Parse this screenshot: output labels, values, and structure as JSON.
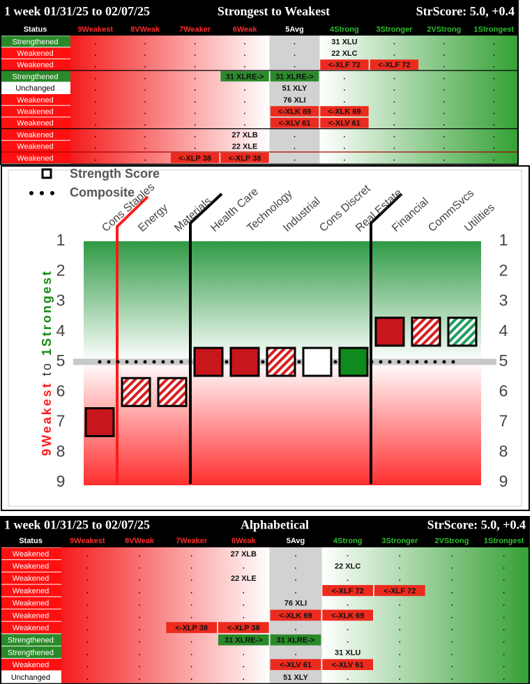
{
  "top_table": {
    "title_left": "1 week 01/31/25 to 02/07/25",
    "title_center": "Strongest to Weakest",
    "title_right": "StrScore: 5.0, +0.4",
    "headers": [
      "Status",
      "9Weakest",
      "8VWeak",
      "7Weaker",
      "6Weak",
      "5Avg",
      "4Strong",
      "3Stronger",
      "2VStrong",
      "1Strongest"
    ],
    "rows": [
      [
        "Strengthened",
        ".",
        ".",
        ".",
        ".",
        ".",
        "31 XLU",
        ".",
        ".",
        "."
      ],
      [
        "Weakened",
        ".",
        ".",
        ".",
        ".",
        ".",
        "22 XLC",
        ".",
        ".",
        "."
      ],
      [
        "Weakened",
        ".",
        ".",
        ".",
        ".",
        ".",
        "<-XLF 72",
        "<-XLF 72",
        ".",
        "."
      ],
      [
        "Strengthened",
        ".",
        ".",
        ".",
        "31 XLRE->",
        "31 XLRE->",
        ".",
        ".",
        ".",
        "."
      ],
      [
        "Unchanged",
        ".",
        ".",
        ".",
        ".",
        "51 XLY",
        ".",
        ".",
        ".",
        "."
      ],
      [
        "Weakened",
        ".",
        ".",
        ".",
        ".",
        "76 XLI",
        ".",
        ".",
        ".",
        "."
      ],
      [
        "Weakened",
        ".",
        ".",
        ".",
        ".",
        "<-XLK 69",
        "<-XLK 69",
        ".",
        ".",
        "."
      ],
      [
        "Weakened",
        ".",
        ".",
        ".",
        ".",
        "<-XLV 61",
        "<-XLV 61",
        ".",
        ".",
        "."
      ],
      [
        "Weakened",
        ".",
        ".",
        ".",
        "27 XLB",
        ".",
        ".",
        ".",
        ".",
        "."
      ],
      [
        "Weakened",
        ".",
        ".",
        ".",
        "22 XLE",
        ".",
        ".",
        ".",
        ".",
        "."
      ],
      [
        "Weakened",
        ".",
        ".",
        "<-XLP 38",
        "<-XLP 38",
        ".",
        ".",
        ".",
        ".",
        "."
      ]
    ]
  },
  "chart_data": {
    "type": "marker",
    "ylabel_weak": "9Weakest",
    "ylabel_to": "to",
    "ylabel_strong": "1Strongest",
    "categories": [
      "Cons Staples",
      "Energy",
      "Materials",
      "Health Care",
      "Technology",
      "Industrial",
      "Cons Discret",
      "Real Estate",
      "Financial",
      "CommSvcs",
      "Utilities"
    ],
    "series": [
      {
        "name": "Strength Score",
        "values": [
          7,
          6,
          6,
          5,
          5,
          5,
          5,
          5,
          4,
          4,
          4
        ],
        "colors": [
          "#c8161d",
          "#d81e1e",
          "#d81e1e",
          "#c8161d",
          "#c8161d",
          "#d81e1e",
          "#ffffff",
          "#0f8a1e",
          "#c8161d",
          "#d81e1e",
          "#1e9e5a"
        ],
        "hatched": [
          false,
          true,
          true,
          false,
          false,
          true,
          false,
          false,
          false,
          true,
          true
        ]
      },
      {
        "name": "Composite",
        "values": [
          5,
          5,
          5,
          5,
          5,
          5,
          5,
          5,
          5,
          5,
          5
        ],
        "color": "#000000"
      }
    ],
    "ylim": [
      9,
      1
    ],
    "yticks": [
      1,
      2,
      3,
      4,
      5,
      6,
      7,
      8,
      9
    ]
  },
  "bottom_table": {
    "title_left": "1 week 01/31/25 to 02/07/25",
    "title_center": "Alphabetical",
    "title_right": "StrScore: 5.0, +0.4",
    "headers": [
      "Status",
      "9Weakest",
      "8VWeak",
      "7Weaker",
      "6Weak",
      "5Avg",
      "4Strong",
      "3Stronger",
      "2VStrong",
      "1Strongest"
    ],
    "rows": [
      [
        "Weakened",
        ".",
        ".",
        ".",
        "27 XLB",
        ".",
        ".",
        ".",
        ".",
        "."
      ],
      [
        "Weakened",
        ".",
        ".",
        ".",
        ".",
        ".",
        "22 XLC",
        ".",
        ".",
        "."
      ],
      [
        "Weakened",
        ".",
        ".",
        ".",
        "22 XLE",
        ".",
        ".",
        ".",
        ".",
        "."
      ],
      [
        "Weakened",
        ".",
        ".",
        ".",
        ".",
        ".",
        "<-XLF 72",
        "<-XLF 72",
        ".",
        "."
      ],
      [
        "Weakened",
        ".",
        ".",
        ".",
        ".",
        "76 XLI",
        ".",
        ".",
        ".",
        "."
      ],
      [
        "Weakened",
        ".",
        ".",
        ".",
        ".",
        "<-XLK 69",
        "<-XLK 69",
        ".",
        ".",
        "."
      ],
      [
        "Weakened",
        ".",
        ".",
        "<-XLP 38",
        "<-XLP 38",
        ".",
        ".",
        ".",
        ".",
        "."
      ],
      [
        "Strengthened",
        ".",
        ".",
        ".",
        "31 XLRE->",
        "31 XLRE->",
        ".",
        ".",
        ".",
        "."
      ],
      [
        "Strengthened",
        ".",
        ".",
        ".",
        ".",
        ".",
        "31 XLU",
        ".",
        ".",
        "."
      ],
      [
        "Weakened",
        ".",
        ".",
        ".",
        ".",
        "<-XLV 61",
        "<-XLV 61",
        ".",
        ".",
        "."
      ],
      [
        "Unchanged",
        ".",
        ".",
        ".",
        ".",
        "51 XLY",
        ".",
        ".",
        ".",
        "."
      ]
    ]
  }
}
